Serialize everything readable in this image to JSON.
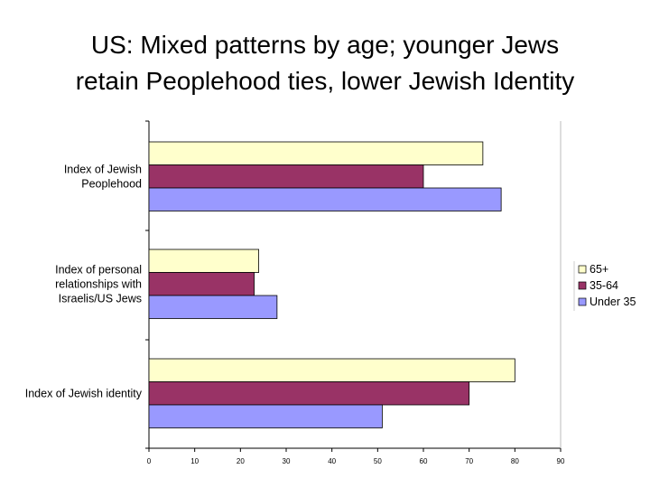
{
  "title": {
    "line1": "US: Mixed patterns by age; younger Jews",
    "line2": "retain Peoplehood ties, lower Jewish Identity"
  },
  "chart_data": {
    "type": "bar",
    "orientation": "horizontal",
    "categories": [
      [
        "Index of Jewish",
        "Peoplehood"
      ],
      [
        "Index of personal",
        "relationships with",
        "Israelis/US Jews"
      ],
      [
        "Index of Jewish identity"
      ]
    ],
    "series": [
      {
        "name": "65+",
        "color": "#ffffcc",
        "values": [
          73,
          24,
          80
        ]
      },
      {
        "name": "35-64",
        "color": "#993366",
        "values": [
          60,
          23,
          70
        ]
      },
      {
        "name": "Under 35",
        "color": "#9999ff",
        "values": [
          77,
          28,
          51
        ]
      }
    ],
    "xlim": [
      0,
      90
    ],
    "xticks": [
      "0",
      "10",
      "20",
      "30",
      "40",
      "50",
      "60",
      "70",
      "80",
      "90"
    ],
    "legend_position": "right",
    "grid": false
  }
}
